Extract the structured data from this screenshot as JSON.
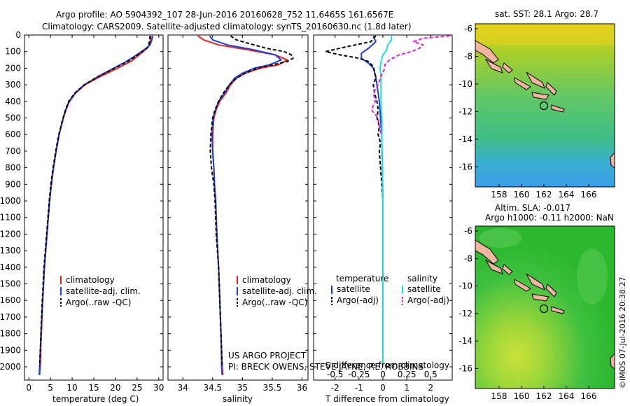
{
  "header": {
    "line1": "Argo profile: AO 5904392_107 28-Jun-2016 20160628_752 11.6465S 161.6567E",
    "line2": "Climatology: CARS2009. Satellite-adjusted climatology: synTS_20160630.nc (1.8d later)"
  },
  "credits": {
    "project": "US ARGO PROJECT",
    "pi": "PI: BRECK OWENS, STEVE JAYNE, P.E. ROBBINS",
    "imos": "©IMOS 07-Jul-2016 20:38:27"
  },
  "colors": {
    "clim": "#e82020",
    "sat": "#1a3fd6",
    "argo": "#000000",
    "sat_s": "#22dddd",
    "argo_s": "#e020e0"
  },
  "chart_data": [
    {
      "type": "line",
      "id": "temperature",
      "xlabel": "temperature (deg C)",
      "ylabel": "",
      "xlim": [
        -1,
        31
      ],
      "ylim": [
        2080,
        0
      ],
      "x_ticks": [
        0,
        5,
        10,
        15,
        20,
        25,
        30
      ],
      "y_ticks": [
        0,
        100,
        200,
        300,
        400,
        500,
        600,
        700,
        800,
        900,
        1000,
        1100,
        1200,
        1300,
        1400,
        1500,
        1600,
        1700,
        1800,
        1900,
        2000
      ],
      "legend": [
        "climatology",
        "satellite-adj. clim.",
        "Argo(..raw -QC)"
      ],
      "series": [
        {
          "name": "climatology",
          "depth": [
            5,
            30,
            60,
            80,
            100,
            130,
            160,
            200,
            250,
            300,
            350,
            400,
            450,
            500,
            600,
            700,
            800,
            900,
            1000,
            1200,
            1400,
            1600,
            1800,
            2000,
            2050
          ],
          "values": [
            28.2,
            28.1,
            27.9,
            27.3,
            26.4,
            25.0,
            23.5,
            20.5,
            16.5,
            13.0,
            10.8,
            9.4,
            8.6,
            8.0,
            7.0,
            6.3,
            5.7,
            5.2,
            4.8,
            4.2,
            3.6,
            3.2,
            2.9,
            2.6,
            2.5
          ]
        },
        {
          "name": "satellite-adj. clim.",
          "depth": [
            5,
            30,
            60,
            80,
            100,
            130,
            160,
            200,
            250,
            300,
            350,
            400,
            450,
            500,
            600,
            700,
            800,
            900,
            1000,
            1200,
            1400,
            1600,
            1800,
            2000,
            2050
          ],
          "values": [
            28.6,
            28.4,
            28.0,
            27.1,
            26.0,
            24.3,
            22.5,
            19.6,
            16.0,
            12.8,
            10.7,
            9.3,
            8.5,
            7.9,
            7.0,
            6.3,
            5.7,
            5.2,
            4.8,
            4.2,
            3.6,
            3.2,
            2.8,
            2.5,
            2.4
          ]
        },
        {
          "name": "Argo(..raw -QC)",
          "depth": [
            5,
            30,
            60,
            80,
            100,
            130,
            160,
            200,
            250,
            300,
            350,
            400,
            450,
            500,
            600,
            700,
            800,
            900,
            1000,
            1200,
            1400,
            1600,
            1800,
            2000
          ],
          "values": [
            28.0,
            27.9,
            27.7,
            27.2,
            26.2,
            24.6,
            22.8,
            19.8,
            16.0,
            12.8,
            10.6,
            9.2,
            8.5,
            7.9,
            6.9,
            6.2,
            5.6,
            5.1,
            4.7,
            4.1,
            3.5,
            3.1,
            2.8,
            2.5
          ]
        }
      ]
    },
    {
      "type": "line",
      "id": "salinity",
      "xlabel": "salinity",
      "xlim": [
        33.75,
        36.1
      ],
      "ylim": [
        2080,
        0
      ],
      "x_ticks": [
        34,
        34.5,
        35,
        35.5,
        36
      ],
      "legend": [
        "climatology",
        "satellite-adj. clim.",
        "Argo(..raw -QC)"
      ],
      "series": [
        {
          "name": "climatology",
          "depth": [
            5,
            30,
            60,
            90,
            120,
            150,
            180,
            200,
            230,
            260,
            300,
            350,
            400,
            450,
            500,
            600,
            700,
            800,
            900,
            1000,
            1200,
            1400,
            1600,
            1800,
            2000,
            2050
          ],
          "values": [
            34.25,
            34.35,
            34.6,
            35.1,
            35.55,
            35.75,
            35.6,
            35.3,
            35.05,
            34.9,
            34.8,
            34.72,
            34.62,
            34.56,
            34.52,
            34.5,
            34.5,
            34.52,
            34.53,
            34.55,
            34.57,
            34.6,
            34.62,
            34.64,
            34.66,
            34.67
          ]
        },
        {
          "name": "satellite-adj. clim.",
          "depth": [
            5,
            30,
            60,
            90,
            120,
            150,
            180,
            200,
            230,
            260,
            300,
            350,
            400,
            450,
            500,
            600,
            700,
            800,
            900,
            1000,
            1200,
            1400,
            1600,
            1800,
            2000,
            2050
          ],
          "values": [
            34.45,
            34.5,
            34.75,
            35.2,
            35.55,
            35.65,
            35.45,
            35.2,
            35.0,
            34.87,
            34.78,
            34.7,
            34.6,
            34.55,
            34.51,
            34.49,
            34.5,
            34.52,
            34.53,
            34.55,
            34.57,
            34.6,
            34.62,
            34.64,
            34.65,
            34.66
          ]
        },
        {
          "name": "Argo(..raw -QC)",
          "depth": [
            5,
            30,
            50,
            80,
            100,
            120,
            140,
            160,
            180,
            200,
            230,
            260,
            300,
            350,
            400,
            450,
            500,
            600,
            700,
            800,
            900,
            1000,
            1200,
            1400,
            1600,
            1800,
            2000
          ],
          "values": [
            34.8,
            34.9,
            35.1,
            35.4,
            35.7,
            35.82,
            35.85,
            35.75,
            35.5,
            35.25,
            35.05,
            34.9,
            34.78,
            34.68,
            34.6,
            34.54,
            34.5,
            34.47,
            34.46,
            34.48,
            34.52,
            34.54,
            34.56,
            34.6,
            34.62,
            34.64,
            34.66
          ]
        }
      ]
    },
    {
      "type": "line",
      "id": "difference",
      "xlabel": "T difference from climatology",
      "xlabel_top": "S difference from climatology",
      "xlim": [
        -2.9,
        2.9
      ],
      "ylim": [
        2080,
        0
      ],
      "x_ticks": [
        -2,
        -1,
        0,
        1,
        2
      ],
      "s_ticks": [
        "-0.5",
        "-0.25",
        "0",
        "0.25",
        "0.5"
      ],
      "legend_left_title": "temperature",
      "legend_right_title": "salinity",
      "legend": [
        "satellite",
        "Argo(-adj)",
        "satellite",
        "Argo(-adj)"
      ],
      "series": [
        {
          "name": "T satellite",
          "depth": [
            5,
            40,
            80,
            110,
            140,
            170,
            200,
            250,
            300,
            350,
            400,
            500,
            600,
            800,
            1000,
            1400,
            1800,
            2000
          ],
          "values": [
            -0.4,
            -0.3,
            -0.6,
            -0.9,
            -0.9,
            -0.6,
            -0.4,
            -0.3,
            -0.25,
            -0.2,
            -0.15,
            -0.1,
            -0.05,
            -0.02,
            0,
            0,
            0,
            0
          ]
        },
        {
          "name": "T Argo(-adj)",
          "depth": [
            5,
            40,
            70,
            100,
            120,
            140,
            160,
            190,
            220,
            260,
            300,
            350,
            400,
            450,
            500,
            550,
            600,
            650,
            700,
            800,
            900,
            1000,
            1200,
            1500,
            1800,
            2000
          ],
          "values": [
            -0.3,
            -0.5,
            -1.5,
            -2.4,
            -1.8,
            -1.0,
            -0.6,
            -0.4,
            -0.35,
            -0.3,
            -0.4,
            -0.35,
            -0.25,
            -0.2,
            -0.25,
            -0.15,
            -0.2,
            -0.1,
            -0.15,
            -0.1,
            -0.05,
            0,
            0,
            0,
            0,
            0
          ]
        },
        {
          "name": "S satellite",
          "depth": [
            5,
            30,
            60,
            90,
            120,
            160,
            200,
            250,
            300,
            400,
            500,
            700,
            1000,
            1500,
            2000
          ],
          "values": [
            0.09,
            0.09,
            0.05,
            0.04,
            0.0,
            -0.02,
            -0.03,
            -0.02,
            -0.02,
            -0.02,
            -0.01,
            -0.01,
            0,
            0,
            0
          ]
        },
        {
          "name": "S Argo(-adj)",
          "depth": [
            5,
            20,
            40,
            60,
            80,
            100,
            120,
            140,
            160,
            180,
            200,
            250,
            300,
            350,
            400,
            450,
            500,
            600
          ],
          "values": [
            0.7,
            0.42,
            0.32,
            0.42,
            0.38,
            0.3,
            0.17,
            0.1,
            0.05,
            0.02,
            0.02,
            -0.02,
            -0.05,
            -0.1,
            -0.08,
            -0.12,
            -0.05,
            -0.02
          ]
        }
      ]
    }
  ],
  "maps": [
    {
      "title": "sat. SST: 28.1  Argo: 28.7",
      "y_ticks": [
        "-6",
        "-8",
        "-10",
        "-12",
        "-14",
        "-16"
      ],
      "x_ticks": [
        "158",
        "160",
        "162",
        "164",
        "166"
      ]
    },
    {
      "title_line1": "Altim. SLA: -0.017",
      "title_line2": "Argo h1000: -0.11  h2000: NaN",
      "y_ticks": [
        "-6",
        "-8",
        "-10",
        "-12",
        "-14",
        "-16"
      ],
      "x_ticks": [
        "158",
        "160",
        "162",
        "164",
        "166"
      ]
    }
  ]
}
